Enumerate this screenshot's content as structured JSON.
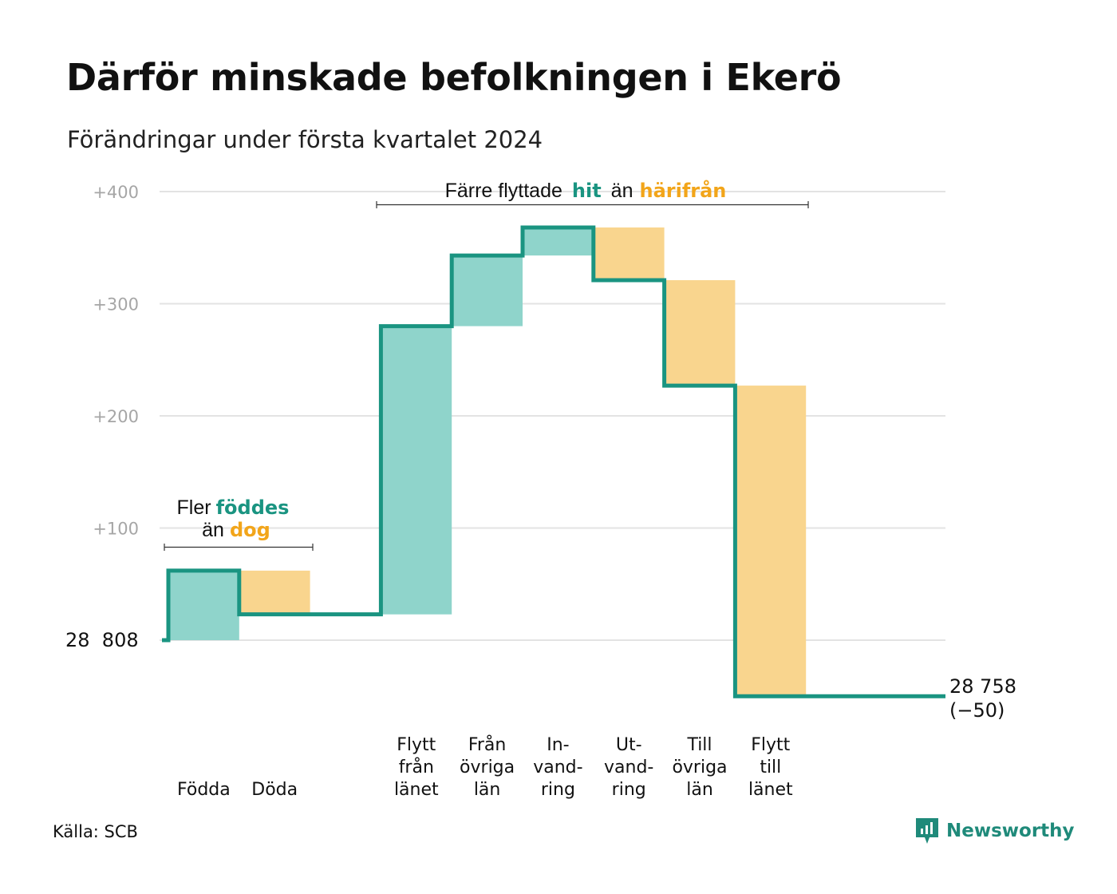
{
  "title": "Därför minskade befolkningen i Ekerö",
  "subtitle": "Förändringar under första kvartalet 2024",
  "source": "Källa: SCB",
  "brand": "Newsworthy",
  "colors": {
    "increase": "#8fd4cb",
    "decrease": "#f9d58e",
    "line": "#1a9481",
    "accent_teal": "#1a9481",
    "accent_orange": "#f2a51a",
    "grid": "#e3e3e3",
    "tick": "#a6a6a6"
  },
  "annotations": {
    "births": {
      "line1_plain": "Fler",
      "line1_highlight": "föddes",
      "line2_plain": "än",
      "line2_highlight": "dog"
    },
    "migration": {
      "plain1": "Färre flyttade",
      "highlight1": "hit",
      "plain2": "än",
      "highlight2": "härifrån"
    }
  },
  "chart_data": {
    "type": "waterfall",
    "title": "Därför minskade befolkningen i Ekerö",
    "subtitle": "Förändringar under första kvartalet 2024",
    "start_value": 28808,
    "start_label": "28  808",
    "end_value": 28758,
    "end_label": "28 758",
    "change_label": "(−50)",
    "ylim": [
      -50,
      400
    ],
    "yticks": [
      100,
      200,
      300,
      400
    ],
    "ytick_labels": [
      "+100",
      "+200",
      "+300",
      "+400"
    ],
    "grid": true,
    "steps": [
      {
        "label": [
          "Födda"
        ],
        "value": 62,
        "from": 0,
        "to": 62
      },
      {
        "label": [
          "Döda"
        ],
        "value": -39,
        "from": 62,
        "to": 23
      },
      {
        "label": [],
        "value": null,
        "from": 23,
        "to": 23
      },
      {
        "label": [
          "Flytt",
          "från",
          "länet"
        ],
        "value": 257,
        "from": 23,
        "to": 280
      },
      {
        "label": [
          "Från",
          "övriga",
          "län"
        ],
        "value": 63,
        "from": 280,
        "to": 343
      },
      {
        "label": [
          "In-",
          "vand-",
          "ring"
        ],
        "value": 25,
        "from": 343,
        "to": 368
      },
      {
        "label": [
          "Ut-",
          "vand-",
          "ring"
        ],
        "value": -47,
        "from": 368,
        "to": 321
      },
      {
        "label": [
          "Till",
          "övriga",
          "län"
        ],
        "value": -94,
        "from": 321,
        "to": 227
      },
      {
        "label": [
          "Flytt",
          "till",
          "länet"
        ],
        "value": -277,
        "from": 227,
        "to": -50
      },
      {
        "label": [],
        "value": null,
        "from": -50,
        "to": -50
      }
    ]
  }
}
